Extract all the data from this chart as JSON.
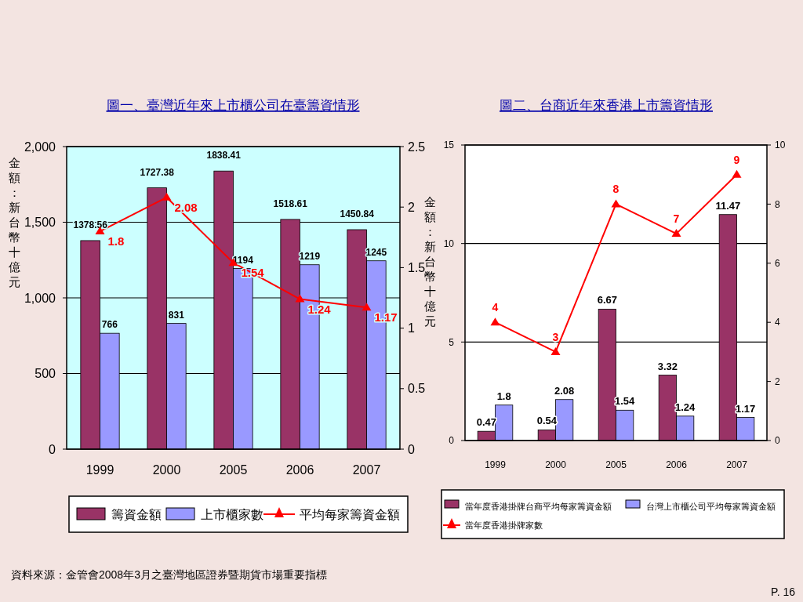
{
  "chart_data": [
    {
      "type": "bar",
      "title": "圖一、臺灣近年來上市櫃公司在臺籌資情形",
      "ylabel": "金額：新台幣十億元",
      "y2label": "金額：新台幣十億元",
      "categories": [
        "1999",
        "2000",
        "2005",
        "2006",
        "2007"
      ],
      "series": [
        {
          "name": "籌資金額",
          "type": "bar",
          "color": "#993366",
          "values": [
            1378.56,
            1727.38,
            1838.41,
            1518.61,
            1450.84
          ]
        },
        {
          "name": "上市櫃家數",
          "type": "bar",
          "color": "#9999ff",
          "values": [
            766,
            831,
            1194,
            1219,
            1245
          ]
        },
        {
          "name": "平均每家籌資金額",
          "type": "line",
          "axis": "y2",
          "color": "#ff0000",
          "values": [
            1.8,
            2.08,
            1.54,
            1.24,
            1.17
          ]
        }
      ],
      "ylim": [
        0,
        2000
      ],
      "yticks": [
        0,
        500,
        {
          "value": 1000,
          "label": "1,000"
        },
        {
          "value": 1500,
          "label": "1,500"
        },
        {
          "value": 2000,
          "label": "2,000"
        }
      ],
      "y2lim": [
        0,
        2.5
      ],
      "y2ticks": [
        0,
        0.5,
        1,
        1.5,
        2,
        2.5
      ],
      "grid": "y",
      "legend": "bottom",
      "marker": "triangle",
      "data_labels": true,
      "annotations": [
        "資料來源：金管會2008年3月之臺灣地區證券暨期貨市場重要指標"
      ]
    },
    {
      "type": "bar",
      "title": "圖二、台商近年來香港上市籌資情形",
      "categories": [
        "1999",
        "2000",
        "2005",
        "2006",
        "2007"
      ],
      "series": [
        {
          "name": "當年度香港掛牌台商平均每家籌資金額",
          "type": "bar",
          "color": "#993366",
          "values": [
            0.47,
            0.54,
            6.67,
            3.32,
            11.47
          ]
        },
        {
          "name": "台灣上市櫃公司平均每家籌資金額",
          "type": "bar",
          "color": "#9999ff",
          "values": [
            1.8,
            2.08,
            1.54,
            1.24,
            1.17
          ]
        },
        {
          "name": "當年度香港掛牌家數",
          "type": "line",
          "axis": "y2",
          "color": "#ff0000",
          "values": [
            4,
            3,
            8,
            7,
            9
          ]
        }
      ],
      "ylim": [
        0,
        15
      ],
      "yticks": [
        0,
        5,
        10,
        15
      ],
      "y2lim": [
        0,
        10
      ],
      "y2ticks": [
        0,
        2,
        4,
        6,
        8,
        10
      ],
      "grid": "y",
      "legend": "bottom",
      "marker": "triangle",
      "data_labels": true,
      "annotations": [
        "P. 16"
      ]
    }
  ]
}
